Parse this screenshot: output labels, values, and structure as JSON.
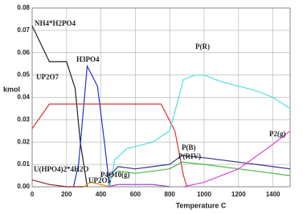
{
  "chart_data": {
    "type": "line",
    "x_label": "Temperature C",
    "y_label": "kmol",
    "xlim": [
      0,
      1500
    ],
    "xticks": [
      0,
      200,
      400,
      600,
      800,
      1000,
      1200,
      1400
    ],
    "ylim": [
      0,
      0.08
    ],
    "yticks": [
      {
        "value": 0,
        "label": "0.00"
      },
      0.01,
      0.02,
      0.03,
      0.04,
      0.05,
      0.06,
      0.07,
      0.08
    ],
    "grid": true,
    "series": [
      {
        "name": "NH4*H2PO4",
        "color": "#222222",
        "x": [
          0,
          100,
          200,
          250,
          280,
          320
        ],
        "values": [
          0.072,
          0.056,
          0.056,
          0.044,
          0.02,
          0
        ]
      },
      {
        "name": "H3PO4",
        "color": "#2233cc",
        "x": [
          240,
          270,
          320,
          380,
          420,
          450
        ],
        "values": [
          0,
          0.01,
          0.054,
          0.045,
          0.02,
          0
        ]
      },
      {
        "name": "UP2O7",
        "color": "#dd3333",
        "x": [
          0,
          100,
          750,
          830,
          880,
          900
        ],
        "values": [
          0.026,
          0.037,
          0.037,
          0.025,
          0.005,
          0
        ]
      },
      {
        "name": "P(R)",
        "color": "#55dddd",
        "x": [
          450,
          480,
          550,
          700,
          800,
          880,
          950,
          1000,
          1100,
          1200,
          1300,
          1400,
          1500
        ],
        "values": [
          0,
          0.012,
          0.017,
          0.02,
          0.025,
          0.048,
          0.05,
          0.05,
          0.047,
          0.045,
          0.043,
          0.04,
          0.035
        ]
      },
      {
        "name": "P(B)",
        "color": "#333388",
        "x": [
          450,
          500,
          600,
          700,
          800,
          870,
          1000,
          1200,
          1400,
          1500
        ],
        "values": [
          0.005,
          0.009,
          0.008,
          0.009,
          0.01,
          0.014,
          0.013,
          0.011,
          0.009,
          0.008
        ]
      },
      {
        "name": "P(RIV)",
        "color": "#44bb44",
        "x": [
          460,
          500,
          600,
          800,
          870,
          1000,
          1200,
          1400,
          1500
        ],
        "values": [
          0.004,
          0.007,
          0.006,
          0.008,
          0.011,
          0.01,
          0.008,
          0.006,
          0.005
        ]
      },
      {
        "name": "P2(g)",
        "color": "#dd44dd",
        "x": [
          880,
          1000,
          1200,
          1400,
          1500
        ],
        "values": [
          0,
          0.002,
          0.008,
          0.019,
          0.025
        ]
      },
      {
        "name": "U(HPO4)2*4H2O",
        "color": "#882222",
        "x": [
          0,
          100,
          200,
          300
        ],
        "values": [
          0.003,
          0.001,
          0,
          0
        ]
      },
      {
        "name": "UP2O5",
        "color": "#dd8800",
        "x": [
          300,
          340,
          400,
          450
        ],
        "values": [
          0,
          0.002,
          0.001,
          0
        ]
      },
      {
        "name": "P4O10(g)",
        "color": "#9933cc",
        "x": [
          440,
          500,
          700,
          800
        ],
        "values": [
          0,
          0.001,
          0.001,
          0
        ]
      }
    ]
  }
}
